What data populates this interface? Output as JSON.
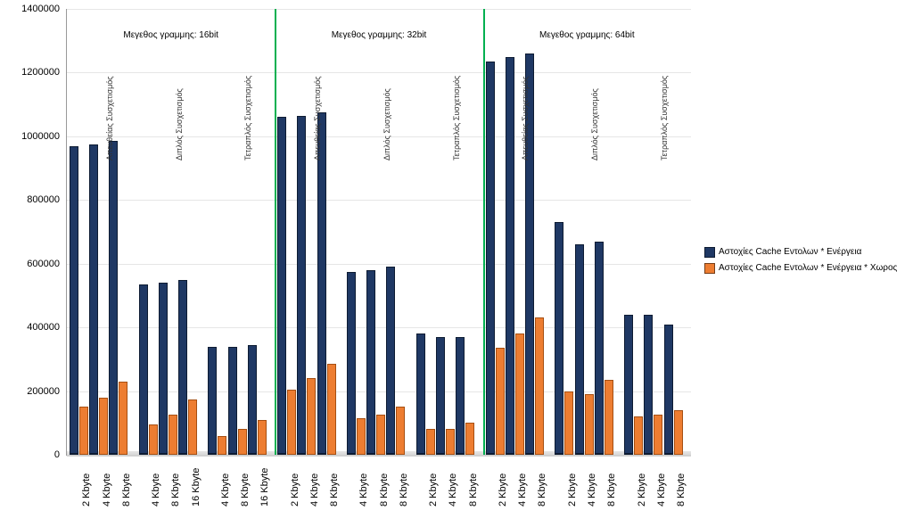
{
  "chart": {
    "type": "bar",
    "background_color": "#ffffff",
    "grid_color": "#e6e6e6",
    "axis_color": "#999999",
    "ylim": [
      0,
      1400000
    ],
    "ytick_step": 200000,
    "yticks": [
      "0",
      "200000",
      "400000",
      "600000",
      "800000",
      "1000000",
      "1200000",
      "1400000"
    ],
    "series": [
      {
        "name": "Αστοχίες Cache Εντολων * Ενέργεια",
        "color": "#1f3864",
        "border": "#0d1b32"
      },
      {
        "name": "Αστοχίες Cache Εντολων * Ενέργεια * Χωρος",
        "color": "#ed7d31",
        "border": "#a64f12"
      }
    ],
    "panel_separator_color": "#00b050",
    "panel_title_fontsize": 10,
    "sub_title_fontsize": 9,
    "tick_fontsize": 11,
    "panels": [
      {
        "title": "Μεγεθος γραμμης: 16bit",
        "subgroups": [
          {
            "subtitle": "Απευθείας Συσχετισμός",
            "cats": [
              "2 Kbyte",
              "4 Kbyte",
              "8 Kbyte"
            ],
            "s0": [
              970000,
              975000,
              985000
            ],
            "s1": [
              150000,
              180000,
              230000
            ]
          },
          {
            "subtitle": "Διπλός Συσχετισμός",
            "cats": [
              "4 Kbyte",
              "8 Kbyte",
              "16 Kbyte"
            ],
            "s0": [
              535000,
              540000,
              550000
            ],
            "s1": [
              95000,
              125000,
              175000
            ]
          },
          {
            "subtitle": "Τετραπλός Συσχετισμός",
            "cats": [
              "4 Kbyte",
              "8 Kbyte",
              "16 Kbyte"
            ],
            "s0": [
              340000,
              340000,
              345000
            ],
            "s1": [
              60000,
              80000,
              110000
            ]
          }
        ]
      },
      {
        "title": "Μεγεθος γραμμης: 32bit",
        "subgroups": [
          {
            "subtitle": "Απευθείας Συσχετισμός",
            "cats": [
              "2 Kbyte",
              "4 Kbyte",
              "8 Kbyte"
            ],
            "s0": [
              1060000,
              1065000,
              1075000
            ],
            "s1": [
              205000,
              240000,
              285000
            ]
          },
          {
            "subtitle": "Διπλός Συσχετισμός",
            "cats": [
              "4 Kbyte",
              "8 Kbyte",
              "8 Kbyte"
            ],
            "s0": [
              575000,
              580000,
              590000
            ],
            "s1": [
              115000,
              125000,
              150000
            ]
          },
          {
            "subtitle": "Τετραπλός Συσχετισμός",
            "cats": [
              "2 Kbyte",
              "4 Kbyte",
              "8 Kbyte"
            ],
            "s0": [
              380000,
              370000,
              370000
            ],
            "s1": [
              80000,
              80000,
              100000
            ]
          }
        ]
      },
      {
        "title": "Μεγεθος γραμμης: 64bit",
        "subgroups": [
          {
            "subtitle": "Απευθείας Συσχετισμός",
            "cats": [
              "2 Kbyte",
              "4 Kbyte",
              "8 Kbyte"
            ],
            "s0": [
              1235000,
              1250000,
              1260000
            ],
            "s1": [
              335000,
              380000,
              430000
            ]
          },
          {
            "subtitle": "Διπλός Συσχετισμός",
            "cats": [
              "2 Kbyte",
              "4 Kbyte",
              "8 Kbyte"
            ],
            "s0": [
              730000,
              660000,
              670000
            ],
            "s1": [
              200000,
              190000,
              235000
            ]
          },
          {
            "subtitle": "Τετραπλός Συσχετισμός",
            "cats": [
              "2 Kbyte",
              "4 Kbyte",
              "8 Kbyte"
            ],
            "s0": [
              440000,
              440000,
              410000
            ],
            "s1": [
              120000,
              125000,
              140000
            ]
          }
        ]
      }
    ]
  }
}
